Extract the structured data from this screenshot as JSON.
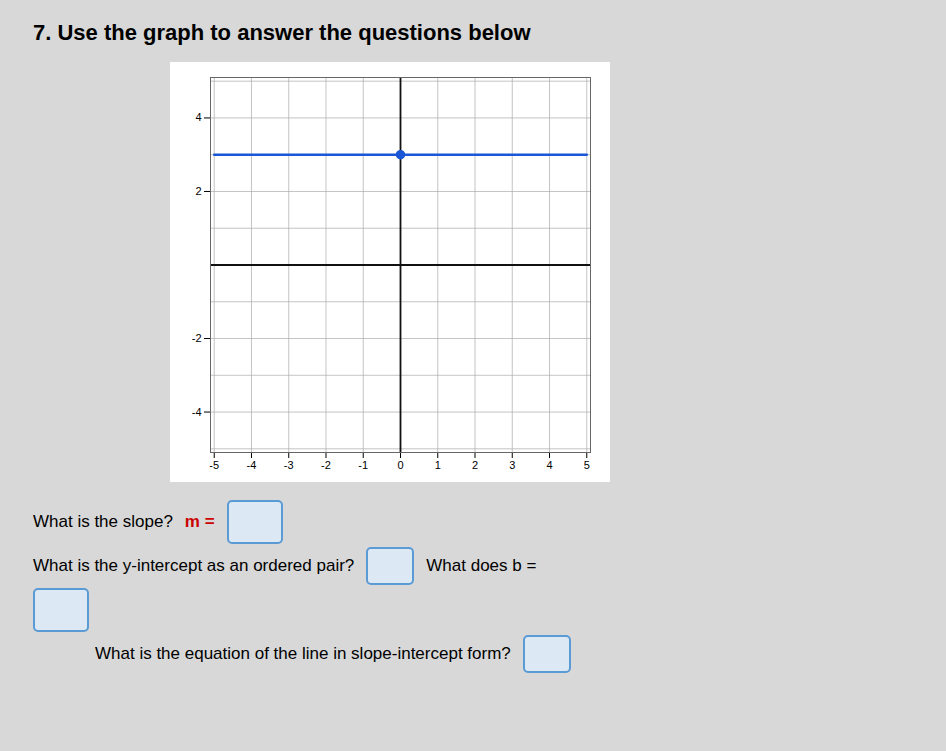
{
  "chart_data": {
    "type": "line",
    "title": "7. Use the graph to answer the questions below",
    "series": [
      {
        "type": "line",
        "color": "#1a56d6",
        "x": [
          -5,
          5
        ],
        "values": [
          3,
          3
        ]
      },
      {
        "type": "scatter",
        "color": "#1a56d6",
        "marker": "circle",
        "x": [
          0
        ],
        "values": [
          3
        ]
      }
    ],
    "xlim": [
      -5.1,
      5.1
    ],
    "ylim": [
      -5.1,
      5.1
    ],
    "xticks": [
      -5,
      -4,
      -3,
      -2,
      -1,
      0,
      1,
      2,
      3,
      4,
      5
    ],
    "yticks": [
      -4,
      -2,
      2,
      4
    ],
    "grid": true,
    "annotations": [
      "What is the slope?",
      "m =",
      "What is the y-intercept as an ordered pair?",
      "What does b =",
      "What is the equation of the line in slope-intercept form?"
    ]
  }
}
